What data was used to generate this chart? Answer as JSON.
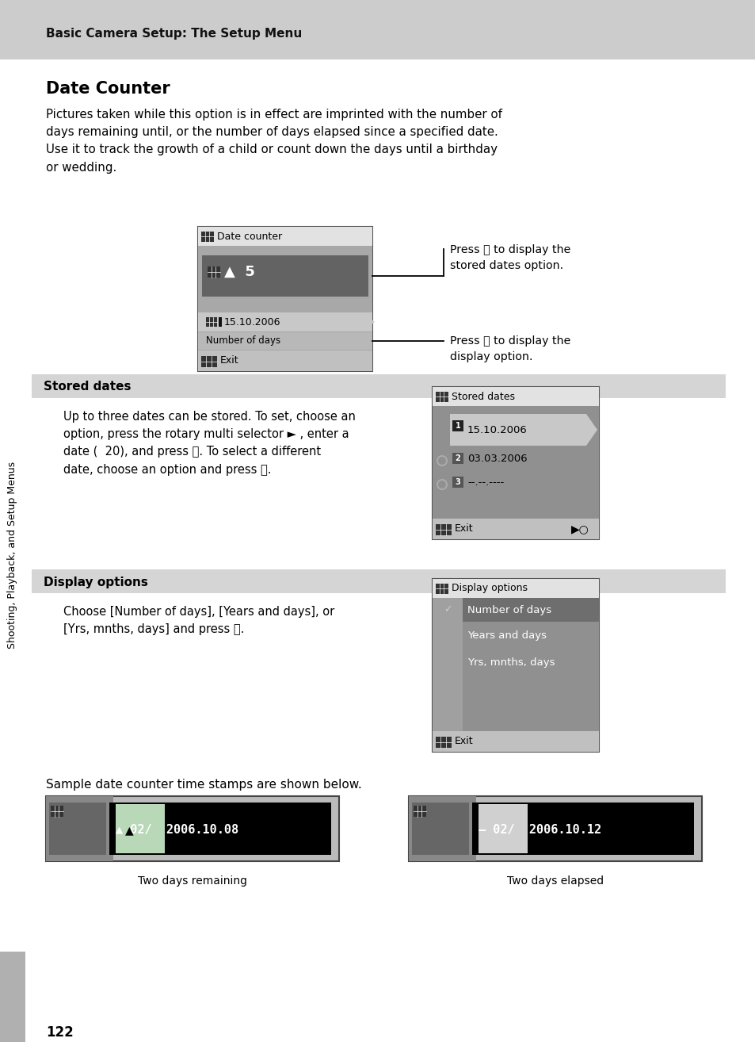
{
  "page_bg": "#ffffff",
  "header_bg": "#cccccc",
  "header_text": "Basic Camera Setup: The Setup Menu",
  "title": "Date Counter",
  "body_text1": "Pictures taken while this option is in effect are imprinted with the number of\ndays remaining until, or the number of days elapsed since a specified date.\nUse it to track the growth of a child or count down the days until a birthday\nor wedding.",
  "section1_bg": "#d5d5d5",
  "section1_title": "Stored dates",
  "section1_body": "Up to three dates can be stored. To set, choose an\noption, press the rotary multi selector ► , enter a\ndate (  20), and press Ⓚ. To select a different\ndate, choose an option and press Ⓚ.",
  "section2_bg": "#d5d5d5",
  "section2_title": "Display options",
  "section2_body": "Choose [Number of days], [Years and days], or\n[Yrs, mnths, days] and press Ⓚ.",
  "sample_text": "Sample date counter time stamps are shown below.",
  "label1": "Two days remaining",
  "label2": "Two days elapsed",
  "page_number": "122",
  "sidebar_text": "Shooting, Playback, and Setup Menus",
  "callout1": "Press Ⓚ to display the\nstored dates option.",
  "callout2": "Press Ⓚ to display the\ndisplay option."
}
